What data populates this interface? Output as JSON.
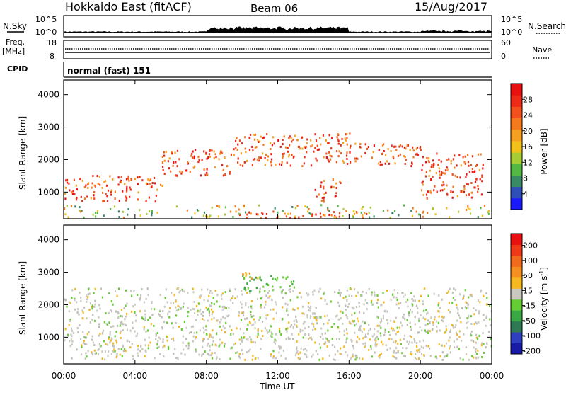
{
  "header": {
    "radar": "Hokkaido East (fitACF)",
    "beam": "Beam 06",
    "date": "15/Aug/2017"
  },
  "top_panels": {
    "nsky_label": "N.Sky",
    "nsearch_label": "N.Search",
    "freq_label_1": "Freq.",
    "freq_label_2": "[MHz]",
    "nave_label": "Nave",
    "cpid_label": "CPID",
    "cpid_value": "normal (fast) 151",
    "noise_ticks_left": [
      "10^5",
      "10^0"
    ],
    "noise_ticks_right": [
      "10^5",
      "10^0"
    ],
    "freq_ticks_left": [
      "18",
      "8"
    ],
    "nave_ticks_right": [
      "60",
      "0"
    ]
  },
  "chart_data": [
    {
      "type": "heatmap",
      "panel": "power",
      "xlabel": "",
      "ylabel": "Slant Range [km]",
      "x_ticks": [
        "00:00",
        "04:00",
        "08:00",
        "12:00",
        "16:00",
        "20:00",
        "00:00"
      ],
      "y_ticks": [
        1000,
        2000,
        3000,
        4000
      ],
      "ylim": [
        180,
        4450
      ],
      "xlim": [
        0,
        24
      ],
      "colorbar": {
        "label": "Power [dB]",
        "ticks": [
          4,
          8,
          12,
          16,
          20,
          24,
          28
        ],
        "range": [
          0,
          32
        ],
        "colors": [
          "#1a1aff",
          "#2e4fb8",
          "#3a8a66",
          "#55b844",
          "#a8cc33",
          "#f2c21c",
          "#f5a020",
          "#f57a1e",
          "#f2501c",
          "#ee2a18",
          "#e81010"
        ]
      },
      "regions": [
        {
          "t": [
            0,
            5.5
          ],
          "r": [
            700,
            1500
          ],
          "level": "high"
        },
        {
          "t": [
            5.5,
            9.5
          ],
          "r": [
            1500,
            2300
          ],
          "level": "high"
        },
        {
          "t": [
            9.5,
            16
          ],
          "r": [
            1800,
            2800
          ],
          "level": "high"
        },
        {
          "t": [
            14,
            15.5
          ],
          "r": [
            700,
            1400
          ],
          "level": "high"
        },
        {
          "t": [
            16,
            20
          ],
          "r": [
            1800,
            2500
          ],
          "level": "high"
        },
        {
          "t": [
            20,
            23.5
          ],
          "r": [
            800,
            2200
          ],
          "level": "high"
        },
        {
          "t": [
            9,
            17
          ],
          "r": [
            200,
            400
          ],
          "level": "high"
        },
        {
          "t": [
            0,
            24
          ],
          "r": [
            200,
            600
          ],
          "level": "mixed"
        }
      ]
    },
    {
      "type": "heatmap",
      "panel": "velocity",
      "xlabel": "Time UT",
      "ylabel": "Slant Range [km]",
      "x_ticks": [
        "00:00",
        "04:00",
        "08:00",
        "12:00",
        "16:00",
        "20:00",
        "00:00"
      ],
      "y_ticks": [
        1000,
        2000,
        3000,
        4000
      ],
      "ylim": [
        180,
        4450
      ],
      "xlim": [
        0,
        24
      ],
      "colorbar": {
        "label": "Velocity [m s",
        "label_sup": "-1",
        "label_end": "]",
        "ticks": [
          200,
          100,
          50,
          15,
          -15,
          -50,
          -100,
          -200
        ],
        "colors": [
          "#1a1aa8",
          "#2e3fc0",
          "#2f7a55",
          "#3aa844",
          "#66cc33",
          "#c8c8c0",
          "#f5b820",
          "#f59020",
          "#f26a1e",
          "#ee3a18",
          "#e81010"
        ]
      },
      "regions": [
        {
          "t": [
            0,
            24
          ],
          "r": [
            300,
            2500
          ],
          "level": "gray"
        },
        {
          "t": [
            10,
            13
          ],
          "r": [
            2400,
            2900
          ],
          "level": "green"
        },
        {
          "t": [
            10,
            11
          ],
          "r": [
            2700,
            3000
          ],
          "level": "orange"
        }
      ]
    }
  ]
}
